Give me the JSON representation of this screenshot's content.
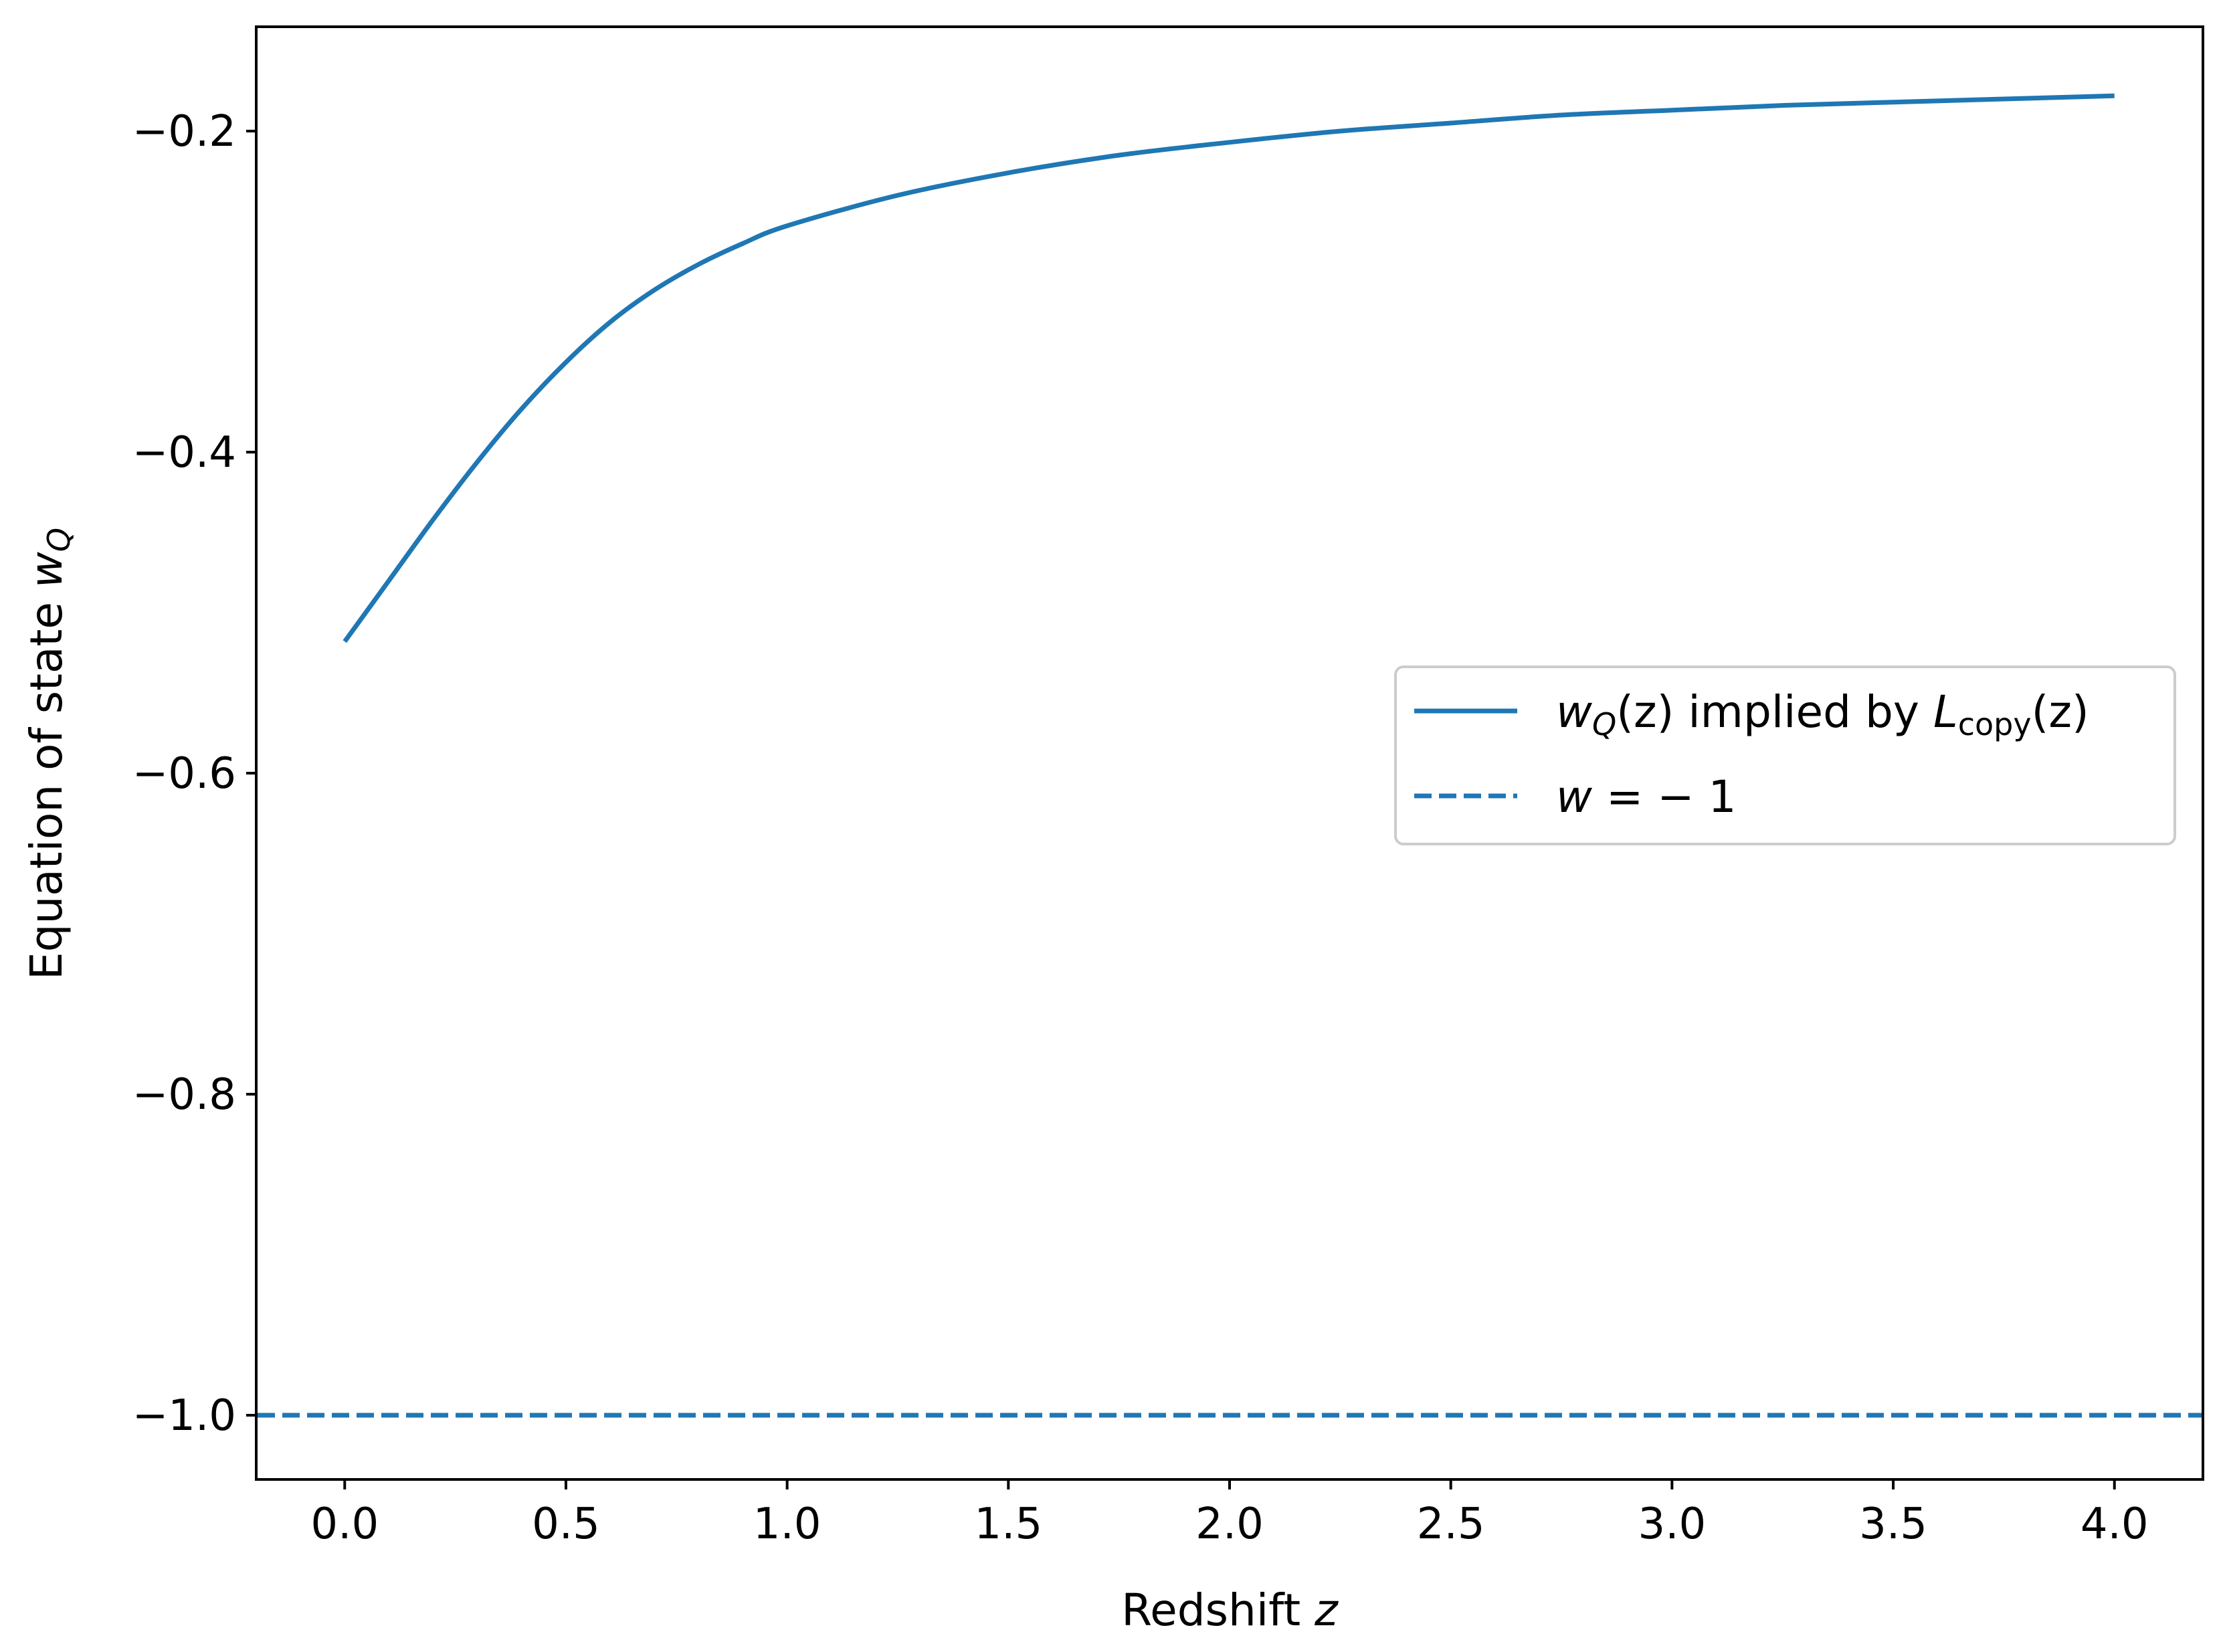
{
  "chart_data": {
    "type": "line",
    "xlabel": "Redshift z",
    "ylabel": "Equation of state w_Q",
    "xlim": [
      -0.2,
      4.2
    ],
    "ylim": [
      -1.04,
      -0.135
    ],
    "x_ticks": [
      0.0,
      0.5,
      1.0,
      1.5,
      2.0,
      2.5,
      3.0,
      3.5,
      4.0
    ],
    "y_ticks": [
      -1.0,
      -0.8,
      -0.6,
      -0.4,
      -0.2
    ],
    "grid": false,
    "legend_position": "center-right",
    "series": [
      {
        "name": "w_Q(z) implied by L_copy(z)",
        "style": "solid",
        "color": "#1f77b4",
        "x": [
          0.0,
          0.1,
          0.2,
          0.3,
          0.4,
          0.5,
          0.6,
          0.7,
          0.8,
          0.9,
          1.0,
          1.25,
          1.5,
          1.75,
          2.0,
          2.25,
          2.5,
          2.75,
          3.0,
          3.25,
          3.5,
          3.75,
          4.0
        ],
        "y": [
          -0.518,
          -0.48,
          -0.442,
          -0.406,
          -0.373,
          -0.344,
          -0.319,
          -0.299,
          -0.283,
          -0.27,
          -0.259,
          -0.24,
          -0.226,
          -0.215,
          -0.207,
          -0.2,
          -0.195,
          -0.19,
          -0.187,
          -0.184,
          -0.182,
          -0.18,
          -0.178
        ]
      },
      {
        "name": "w = −1",
        "style": "dashed",
        "color": "#1f77b4",
        "x": [
          -0.2,
          4.2
        ],
        "y": [
          -1.0,
          -1.0
        ]
      }
    ]
  },
  "axes": {
    "x_tick_labels": [
      "0.0",
      "0.5",
      "1.0",
      "1.5",
      "2.0",
      "2.5",
      "3.0",
      "3.5",
      "4.0"
    ],
    "y_tick_labels": [
      "−1.0",
      "−0.8",
      "−0.6",
      "−0.4",
      "−0.2"
    ],
    "xlabel_text": "Redshift ",
    "xlabel_var": "z",
    "ylabel_text": "Equation of state ",
    "ylabel_var": "w",
    "ylabel_sub": "Q"
  },
  "legend": {
    "entry1_w": "w",
    "entry1_sub": "Q",
    "entry1_mid": "(z) implied by ",
    "entry1_L": "L",
    "entry1_L_sub": "copy",
    "entry1_end": "(z)",
    "entry2_lhs": "w",
    "entry2_rhs": " = − 1"
  }
}
